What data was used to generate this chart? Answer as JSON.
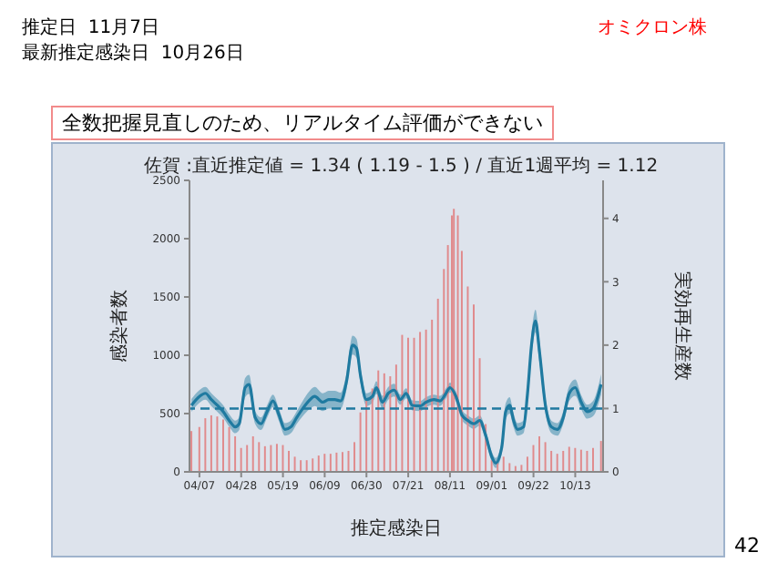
{
  "chart_data": {
    "type": "bar",
    "title": "佐賀 :直近推定値 = 1.34 ( 1.19 - 1.5 ) / 直近1週平均 = 1.12",
    "xlabel": "推定感染日",
    "ylabel": "感染者数",
    "y2label": "実効再生産数",
    "annotations": [
      "推定日  11月7日",
      "最新推定感染日  10月26日",
      "オミクロン株",
      "全数把握見直しのため、リアルタイム評価ができない",
      "42"
    ],
    "xlim": [
      "--04-02",
      "--10-27"
    ],
    "xticks": [
      {
        "value": "--04-07",
        "label": "04/07"
      },
      {
        "value": "--04-28",
        "label": "04/28"
      },
      {
        "value": "--05-19",
        "label": "05/19"
      },
      {
        "value": "--06-09",
        "label": "06/09"
      },
      {
        "value": "--06-30",
        "label": "06/30"
      },
      {
        "value": "--07-21",
        "label": "07/21"
      },
      {
        "value": "--08-11",
        "label": "08/11"
      },
      {
        "value": "--09-01",
        "label": "09/01"
      },
      {
        "value": "--09-22",
        "label": "09/22"
      },
      {
        "value": "--10-13",
        "label": "10/13"
      }
    ],
    "ylim": [
      0,
      2500
    ],
    "yticks": [
      0,
      500,
      1000,
      1500,
      2000,
      2500
    ],
    "y2lim": [
      0,
      4.6
    ],
    "y2ticks": [
      0,
      1,
      2,
      3,
      4
    ],
    "series": [
      {
        "color": "#e08a8c",
        "x": [
          "--04-03",
          "--04-07",
          "--04-10",
          "--04-13",
          "--04-16",
          "--04-19",
          "--04-22",
          "--04-25",
          "--04-28",
          "--05-01",
          "--05-04",
          "--05-07",
          "--05-10",
          "--05-13",
          "--05-16",
          "--05-19",
          "--05-22",
          "--05-25",
          "--05-28",
          "--05-31",
          "--06-03",
          "--06-06",
          "--06-09",
          "--06-12",
          "--06-15",
          "--06-18",
          "--06-21",
          "--06-24",
          "--06-27",
          "--06-30",
          "--07-03",
          "--07-06",
          "--07-09",
          "--07-12",
          "--07-15",
          "--07-18",
          "--07-21",
          "--07-24",
          "--07-27",
          "--07-30",
          "--08-02",
          "--08-05",
          "--08-08",
          "--08-10",
          "--08-12",
          "--08-13",
          "--08-15",
          "--08-17",
          "--08-20",
          "--08-23",
          "--08-26",
          "--08-29",
          "--09-01",
          "--09-04",
          "--09-07",
          "--09-10",
          "--09-13",
          "--09-16",
          "--09-19",
          "--09-22",
          "--09-25",
          "--09-28",
          "--10-01",
          "--10-04",
          "--10-07",
          "--10-10",
          "--10-13",
          "--10-16",
          "--10-19",
          "--10-22",
          "--10-26"
        ],
        "values": [
          350,
          385,
          460,
          485,
          475,
          450,
          385,
          305,
          205,
          230,
          305,
          255,
          220,
          230,
          240,
          230,
          180,
          130,
          100,
          100,
          115,
          140,
          155,
          155,
          165,
          170,
          180,
          255,
          510,
          615,
          715,
          870,
          845,
          820,
          920,
          1175,
          1150,
          1150,
          1200,
          1220,
          1305,
          1485,
          1740,
          1945,
          2200,
          2255,
          2200,
          1895,
          1590,
          1435,
          975,
          410,
          100,
          75,
          130,
          75,
          50,
          60,
          130,
          230,
          305,
          255,
          180,
          155,
          180,
          215,
          205,
          190,
          180,
          205,
          265
        ]
      },
      {
        "type": "line",
        "axis": "y2",
        "color": "#1f7aa0",
        "x": [
          "--04-03",
          "--04-07",
          "--04-10",
          "--04-13",
          "--04-16",
          "--04-19",
          "--04-22",
          "--04-25",
          "--04-27",
          "--04-30",
          "--05-02",
          "--05-05",
          "--05-08",
          "--05-11",
          "--05-14",
          "--05-17",
          "--05-20",
          "--05-23",
          "--05-26",
          "--05-29",
          "--06-01",
          "--06-04",
          "--06-08",
          "--06-11",
          "--06-14",
          "--06-17",
          "--06-20",
          "--06-23",
          "--06-25",
          "--06-27",
          "--06-30",
          "--07-03",
          "--07-05",
          "--07-08",
          "--07-11",
          "--07-14",
          "--07-17",
          "--07-20",
          "--07-23",
          "--07-27",
          "--07-30",
          "--08-03",
          "--08-06",
          "--08-09",
          "--08-11",
          "--08-14",
          "--08-17",
          "--08-20",
          "--08-23",
          "--08-26",
          "--08-29",
          "--09-01",
          "--09-03",
          "--09-06",
          "--09-08",
          "--09-10",
          "--09-12",
          "--09-14",
          "--09-17",
          "--09-19",
          "--09-21",
          "--09-23",
          "--09-25",
          "--09-28",
          "--10-01",
          "--10-04",
          "--10-07",
          "--10-10",
          "--10-13",
          "--10-16",
          "--10-19",
          "--10-22",
          "--10-26"
        ],
        "values": [
          1.05,
          1.19,
          1.24,
          1.14,
          1.05,
          0.95,
          0.81,
          0.71,
          0.76,
          1.33,
          1.38,
          0.86,
          0.76,
          0.95,
          1.12,
          0.9,
          0.67,
          0.71,
          0.86,
          1.0,
          1.12,
          1.19,
          1.1,
          1.14,
          1.14,
          1.12,
          1.43,
          2.0,
          1.95,
          1.52,
          1.14,
          1.19,
          1.33,
          1.1,
          1.24,
          1.29,
          1.14,
          1.24,
          1.05,
          1.04,
          1.1,
          1.14,
          1.12,
          1.24,
          1.33,
          1.19,
          0.9,
          0.81,
          0.76,
          0.81,
          0.57,
          0.24,
          0.14,
          0.38,
          0.95,
          1.05,
          0.81,
          0.67,
          0.71,
          1.24,
          2.0,
          2.38,
          1.9,
          1.05,
          0.71,
          0.67,
          0.86,
          1.24,
          1.33,
          1.1,
          0.95,
          1.0,
          1.38
        ],
        "lower": [
          0.95,
          1.09,
          1.14,
          1.04,
          0.95,
          0.85,
          0.71,
          0.61,
          0.66,
          1.18,
          1.23,
          0.76,
          0.66,
          0.85,
          1.02,
          0.8,
          0.57,
          0.61,
          0.76,
          0.88,
          0.98,
          1.04,
          0.96,
          1.0,
          1.0,
          0.99,
          1.3,
          1.85,
          1.8,
          1.4,
          1.04,
          1.09,
          1.23,
          1.0,
          1.14,
          1.19,
          1.06,
          1.16,
          0.97,
          0.96,
          1.02,
          1.06,
          1.04,
          1.16,
          1.25,
          1.11,
          0.82,
          0.73,
          0.68,
          0.73,
          0.49,
          0.16,
          0.06,
          0.28,
          0.82,
          0.92,
          0.7,
          0.57,
          0.61,
          1.1,
          1.82,
          2.2,
          1.73,
          0.93,
          0.61,
          0.57,
          0.76,
          1.12,
          1.2,
          0.99,
          0.84,
          0.88,
          1.22
        ],
        "upper": [
          1.15,
          1.29,
          1.34,
          1.24,
          1.15,
          1.05,
          0.91,
          0.81,
          0.86,
          1.48,
          1.53,
          0.96,
          0.86,
          1.05,
          1.22,
          1.0,
          0.77,
          0.81,
          0.96,
          1.12,
          1.26,
          1.34,
          1.24,
          1.28,
          1.28,
          1.25,
          1.56,
          2.15,
          2.1,
          1.64,
          1.24,
          1.29,
          1.43,
          1.2,
          1.34,
          1.39,
          1.22,
          1.32,
          1.13,
          1.12,
          1.18,
          1.22,
          1.2,
          1.32,
          1.41,
          1.27,
          0.98,
          0.89,
          0.84,
          0.89,
          0.65,
          0.32,
          0.22,
          0.48,
          1.08,
          1.18,
          0.92,
          0.77,
          0.81,
          1.38,
          2.18,
          2.56,
          2.07,
          1.17,
          0.81,
          0.77,
          0.96,
          1.36,
          1.46,
          1.21,
          1.06,
          1.12,
          1.54
        ]
      }
    ],
    "ref_lines": [
      {
        "axis": "y2",
        "value": 1,
        "line_style": "dashed",
        "color": "#1f7aa0"
      }
    ]
  }
}
